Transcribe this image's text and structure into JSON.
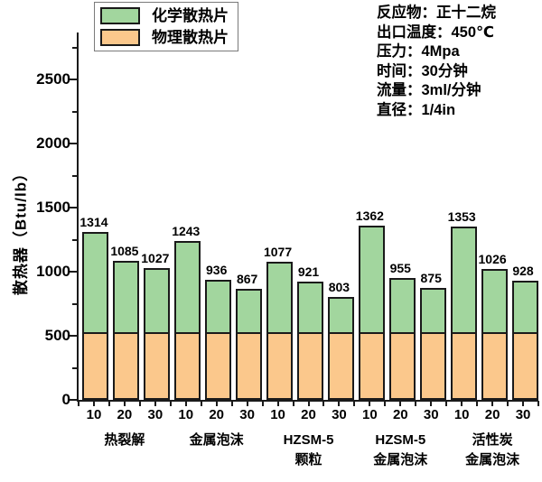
{
  "chart_data": {
    "type": "bar",
    "stacked": true,
    "title": "",
    "xlabel": "",
    "ylabel": "散热器（Btu/lb）",
    "ylim": [
      0,
      2870
    ],
    "ytick_major": [
      0,
      500,
      1000,
      1500,
      2000,
      2500
    ],
    "ytick_minor_interval": 250,
    "grid": false,
    "legend_position": "top-left",
    "groups": [
      {
        "label_lines": [
          "热裂解"
        ]
      },
      {
        "label_lines": [
          "金属泡沫"
        ]
      },
      {
        "label_lines": [
          "HZSM-5",
          "颗粒"
        ]
      },
      {
        "label_lines": [
          "HZSM-5",
          "金属泡沫"
        ]
      },
      {
        "label_lines": [
          "活性炭",
          "金属泡沫"
        ]
      }
    ],
    "x_sublabels_per_group": [
      "10",
      "20",
      "30"
    ],
    "totals": [
      1314,
      1085,
      1027,
      1243,
      936,
      867,
      1077,
      921,
      803,
      1362,
      955,
      875,
      1353,
      1026,
      928
    ],
    "series": [
      {
        "name": "化学散热片",
        "color": "#a2d69e",
        "note": "top segment = total - physical"
      },
      {
        "name": "物理散热片",
        "color": "#fbc88c",
        "constant_value": 530,
        "note": "bottom segment, approx constant"
      }
    ],
    "bar_border_color": "#1a1a1a"
  },
  "legend": {
    "items": [
      {
        "label": "化学散热片",
        "color": "#a2d69e"
      },
      {
        "label": "物理散热片",
        "color": "#fbc88c"
      }
    ]
  },
  "conditions": {
    "lines": [
      "反应物：正十二烷",
      "出口温度：450℃",
      "压力：4Mpa",
      "时间：30分钟",
      "流量：3ml/分钟",
      "直径：1/4in"
    ]
  }
}
